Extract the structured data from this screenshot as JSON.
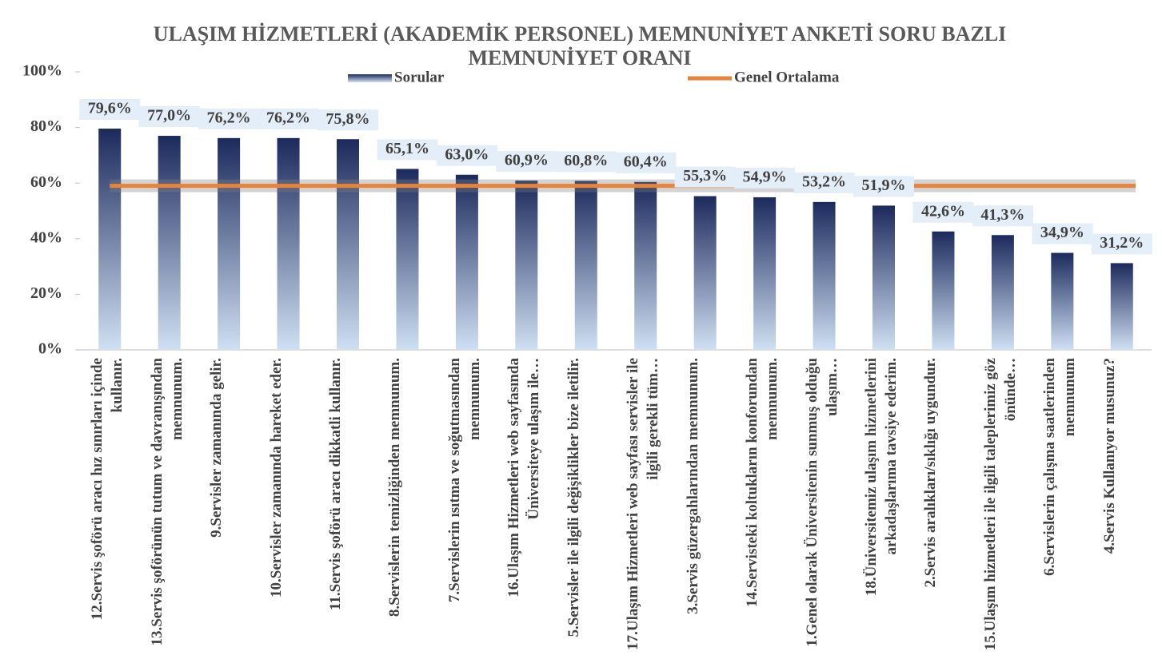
{
  "chart_data": {
    "type": "bar",
    "title": "ULAŞIM HİZMETLERİ  (AKADEMİK PERSONEL) MEMNUNİYET  ANKETİ SORU BAZLI MEMNUNİYET  ORANI",
    "categories": [
      "12.Servis şoförü aracı hız sınırları içinde kullanır.",
      "13.Servis şoförünün tutum ve davranışından memnunum.",
      "9.Servisler zamanında gelir.",
      "10.Servisler zamanında hareket eder.",
      "11.Servis şoförü aracı dikkatli kullanır.",
      "8.Servislerin temizliğinden memnunum.",
      "7.Servislerin ısıtma ve soğutmasından memnunum.",
      "16.Ulaşım Hizmetleri web sayfasında Üniversiteye ulaşım ile…",
      "5.Servisler ile ilgili değişiklikler bize iletilir.",
      "17.Ulaşım Hizmetleri web sayfası servisler ile ilgili gerekli tüm…",
      "3.Servis güzergahlarından memnunum.",
      "14.Servisteki koltukların konforundan memnunum.",
      "1.Genel olarak Üniversitenin sunmuş olduğu ulaşım…",
      "18.Üniversitemiz ulaşım hizmetlerini arkadaşlarıma tavsiye ederim.",
      "2.Servis aralıkları/sıklığı uygundur.",
      "15.Ulaşım hizmetleri ile ilgili taleplerimiz göz önünde…",
      "6.Servislerin çalışma saatlerinden memnunum",
      "4.Servis Kullanıyor musunuz?"
    ],
    "series": [
      {
        "name": "Sorular",
        "color": "#1b2a5c",
        "values": [
          79.6,
          77.0,
          76.2,
          76.2,
          75.8,
          65.1,
          63.0,
          60.9,
          60.8,
          60.4,
          55.3,
          54.9,
          53.2,
          51.9,
          42.6,
          41.3,
          34.9,
          31.2
        ],
        "value_labels": [
          "79,6%",
          "77,0%",
          "76,2%",
          "76,2%",
          "75,8%",
          "65,1%",
          "63,0%",
          "60,9%",
          "60,8%",
          "60,4%",
          "55,3%",
          "54,9%",
          "53,2%",
          "51,9%",
          "42,6%",
          "41,3%",
          "34,9%",
          "31,2%"
        ]
      },
      {
        "name": "Genel Ortalama",
        "color": "#e8833a",
        "type": "line",
        "values": [
          59,
          59,
          59,
          59,
          59,
          59,
          59,
          59,
          59,
          59,
          59,
          59,
          59,
          59,
          59,
          59,
          59,
          59
        ]
      }
    ],
    "ylim": [
      0,
      100
    ],
    "yticks": [
      {
        "value": 0,
        "label": "0%"
      },
      {
        "value": 20,
        "label": "20%"
      },
      {
        "value": 40,
        "label": "40%"
      },
      {
        "value": 60,
        "label": "60%"
      },
      {
        "value": 80,
        "label": "80%"
      },
      {
        "value": 100,
        "label": "100%"
      }
    ],
    "legend": "top"
  }
}
